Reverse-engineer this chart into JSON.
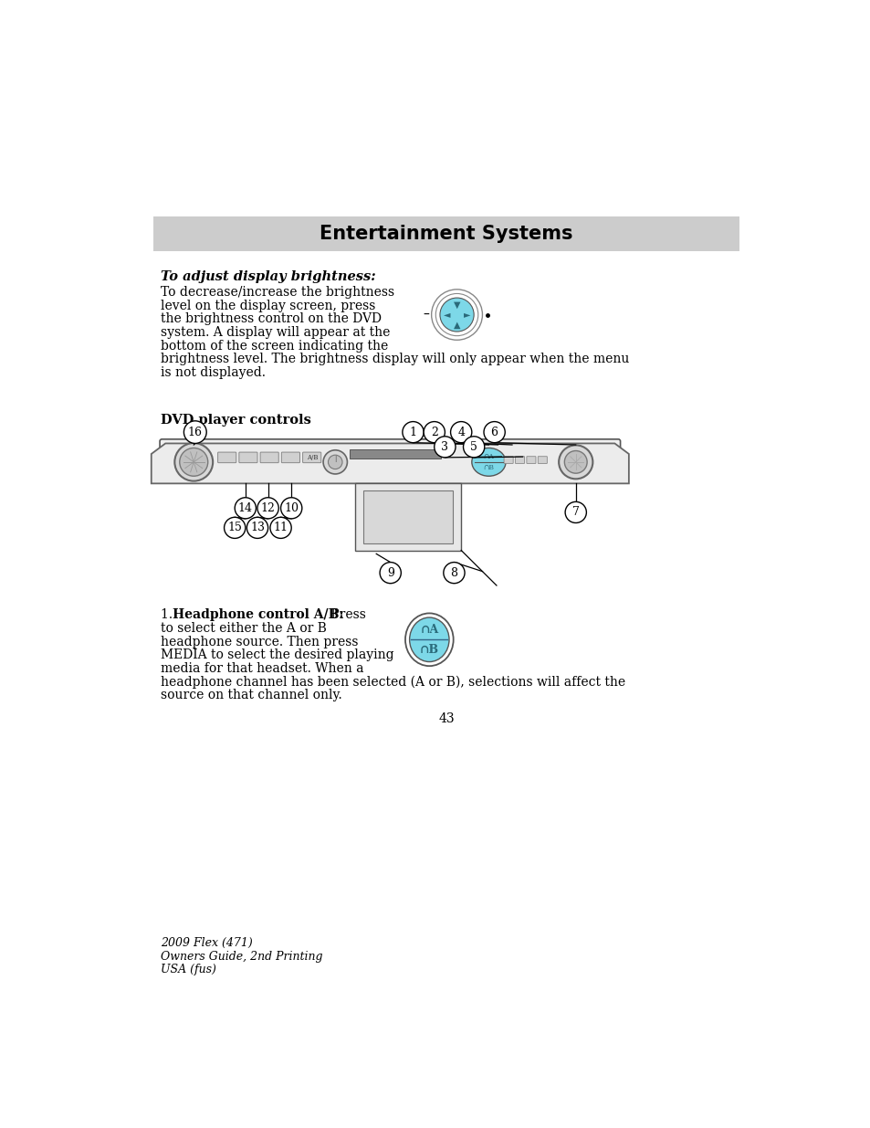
{
  "page_number": "43",
  "header_text": "Entertainment Systems",
  "header_bg": "#cccccc",
  "section1_title": "To adjust display brightness:",
  "section1_body_lines": [
    "To decrease/increase the brightness",
    "level on the display screen, press",
    "the brightness control on the DVD",
    "system. A display will appear at the",
    "bottom of the screen indicating the",
    "brightness level. The brightness display will only appear when the menu",
    "is not displayed."
  ],
  "section2_title": "DVD player controls",
  "section3_first_bold": "1. •Headphone control A/B:• Press",
  "section3_body_lines": [
    "to select either the A or B",
    "headphone source. Then press",
    "MEDIA to select the desired playing",
    "media for that headset. When a",
    "headphone channel has been selected (A or B), selections will affect the",
    "source on that channel only."
  ],
  "footer_line1": "2009 Flex (471)",
  "footer_line2": "Owners Guide, 2nd Printing",
  "footer_line3": "USA (fus)",
  "cyan_color": "#7dd8e8",
  "dark_cyan": "#2a6a7a",
  "bg_white": "#ffffff",
  "text_black": "#1a1a1a"
}
